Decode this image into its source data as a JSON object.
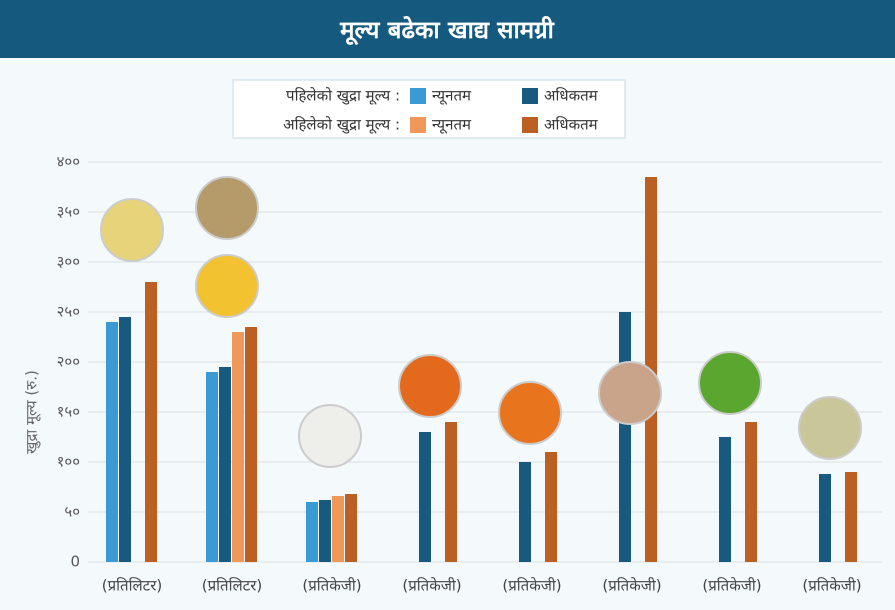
{
  "chart_data": {
    "type": "bar",
    "title": "मूल्य बढेका खाद्य सामग्री",
    "y_label": "खुद्रा मूल्य (रु.)",
    "categories": [
      "(प्रतिलिटर)",
      "(प्रतिलिटर)",
      "(प्रतिकेजी)",
      "(प्रतिकेजी)",
      "(प्रतिकेजी)",
      "(प्रतिकेजी)",
      "(प्रतिकेजी)",
      "(प्रतिकेजी)"
    ],
    "legend_groups": [
      "पहिलेको खुद्रा मूल्य :",
      "अहिलेको खुद्रा मूल्य :"
    ],
    "series": [
      {
        "name": "न्यूनतम",
        "color": "#3a9ad3",
        "values": [
          240,
          190,
          60,
          null,
          null,
          null,
          null,
          null
        ]
      },
      {
        "name": "अधिकतम",
        "color": "#17597f",
        "values": [
          245,
          195,
          62,
          130,
          100,
          250,
          125,
          88
        ]
      },
      {
        "name": "न्यूनतम",
        "color": "#f0975a",
        "values": [
          null,
          230,
          66,
          null,
          null,
          null,
          null,
          null
        ]
      },
      {
        "name": "अधिकतम",
        "color": "#bc5f22",
        "values": [
          280,
          235,
          68,
          140,
          110,
          385,
          140,
          90
        ]
      }
    ],
    "ylim": [
      0,
      400
    ],
    "yticks": [
      0,
      {
        "value": 50,
        "label": "५०"
      },
      {
        "value": 100,
        "label": "१००"
      },
      {
        "value": 150,
        "label": "१५०"
      },
      {
        "value": 200,
        "label": "२००"
      },
      {
        "value": 250,
        "label": "२५०"
      },
      {
        "value": 300,
        "label": "३००"
      },
      {
        "value": 350,
        "label": "३५०"
      },
      {
        "value": 400,
        "label": "४००"
      }
    ],
    "grid": true
  }
}
